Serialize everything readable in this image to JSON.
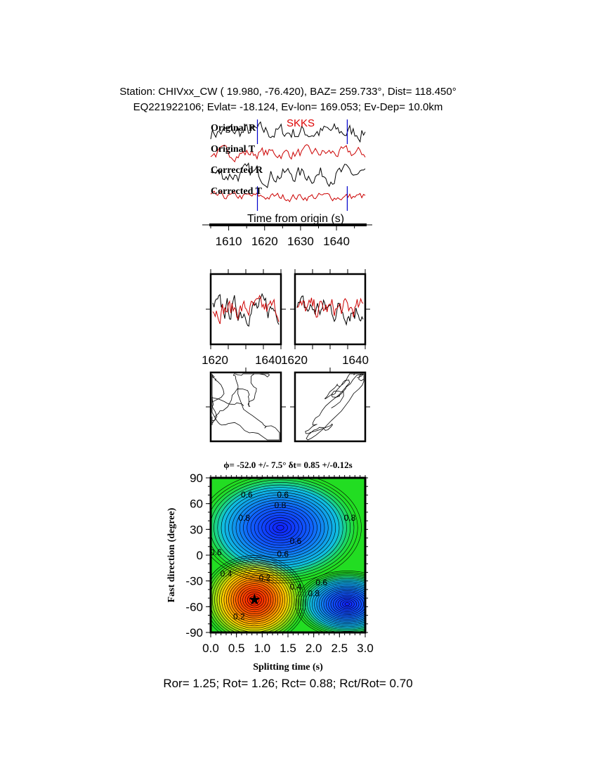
{
  "header": {
    "line1": "Station: CHIVxx_CW (  19.980,  -76.420), BAZ=  259.733°, Dist=  118.450°",
    "line2": "EQ221922106; Evlat= -18.124, Ev-lon= 169.053; Ev-Dep= 10.0km"
  },
  "chart_data": [
    {
      "type": "line",
      "phase_label": "SKKS",
      "traces": [
        "Original R",
        "Original T",
        "Corrected R",
        "Corrected T"
      ],
      "trace_colors": {
        "R": "#000000",
        "T": "#cc0000"
      },
      "window_markers": [
        1618,
        1643
      ],
      "marker_color": "#0000cc",
      "xlabel": "Time from origin (s)",
      "xticks": [
        "1610",
        "1620",
        "1630",
        "1640"
      ],
      "xlim": [
        1605,
        1648
      ]
    },
    {
      "type": "line",
      "panels": [
        "original",
        "corrected"
      ],
      "xticks_left": [
        "1620",
        "1640"
      ],
      "xticks_right": [
        "1620",
        "1640"
      ],
      "xlim": [
        1618,
        1643
      ]
    },
    {
      "type": "scatter",
      "panels": [
        "particle-motion-original",
        "particle-motion-corrected"
      ]
    },
    {
      "type": "heatmap",
      "title": "ϕ= -52.0 +/- 7.5° δt= 0.85 +/-0.12s",
      "xlabel": "Splitting time (s)",
      "ylabel": "Fast direction (degree)",
      "xticks": [
        "0.0",
        "0.5",
        "1.0",
        "1.5",
        "2.0",
        "2.5",
        "3.0"
      ],
      "yticks": [
        "90",
        "60",
        "30",
        "0",
        "-30",
        "-60",
        "-90"
      ],
      "xlim": [
        0,
        3
      ],
      "ylim": [
        -90,
        90
      ],
      "best_fit": {
        "dt": 0.85,
        "phi": -52.0
      },
      "minimum_regions": [
        {
          "dt": 0.85,
          "phi": -52,
          "level": 0.0
        }
      ],
      "maximum_regions": [
        {
          "dt": 1.35,
          "phi": 32,
          "level": 1.0
        },
        {
          "dt": 2.65,
          "phi": -57,
          "level": 1.0
        }
      ],
      "contour_labels": [
        "0.6",
        "0.6",
        "0.8",
        "0.8",
        "0.6",
        "0.6",
        "0.8",
        "0.6",
        "0.4",
        "0.2",
        "0.4",
        "0.6",
        "0.8",
        "0.2"
      ]
    }
  ],
  "footer": "Ror= 1.25; Rot= 1.26; Rct= 0.88; Rct/Rot= 0.70"
}
